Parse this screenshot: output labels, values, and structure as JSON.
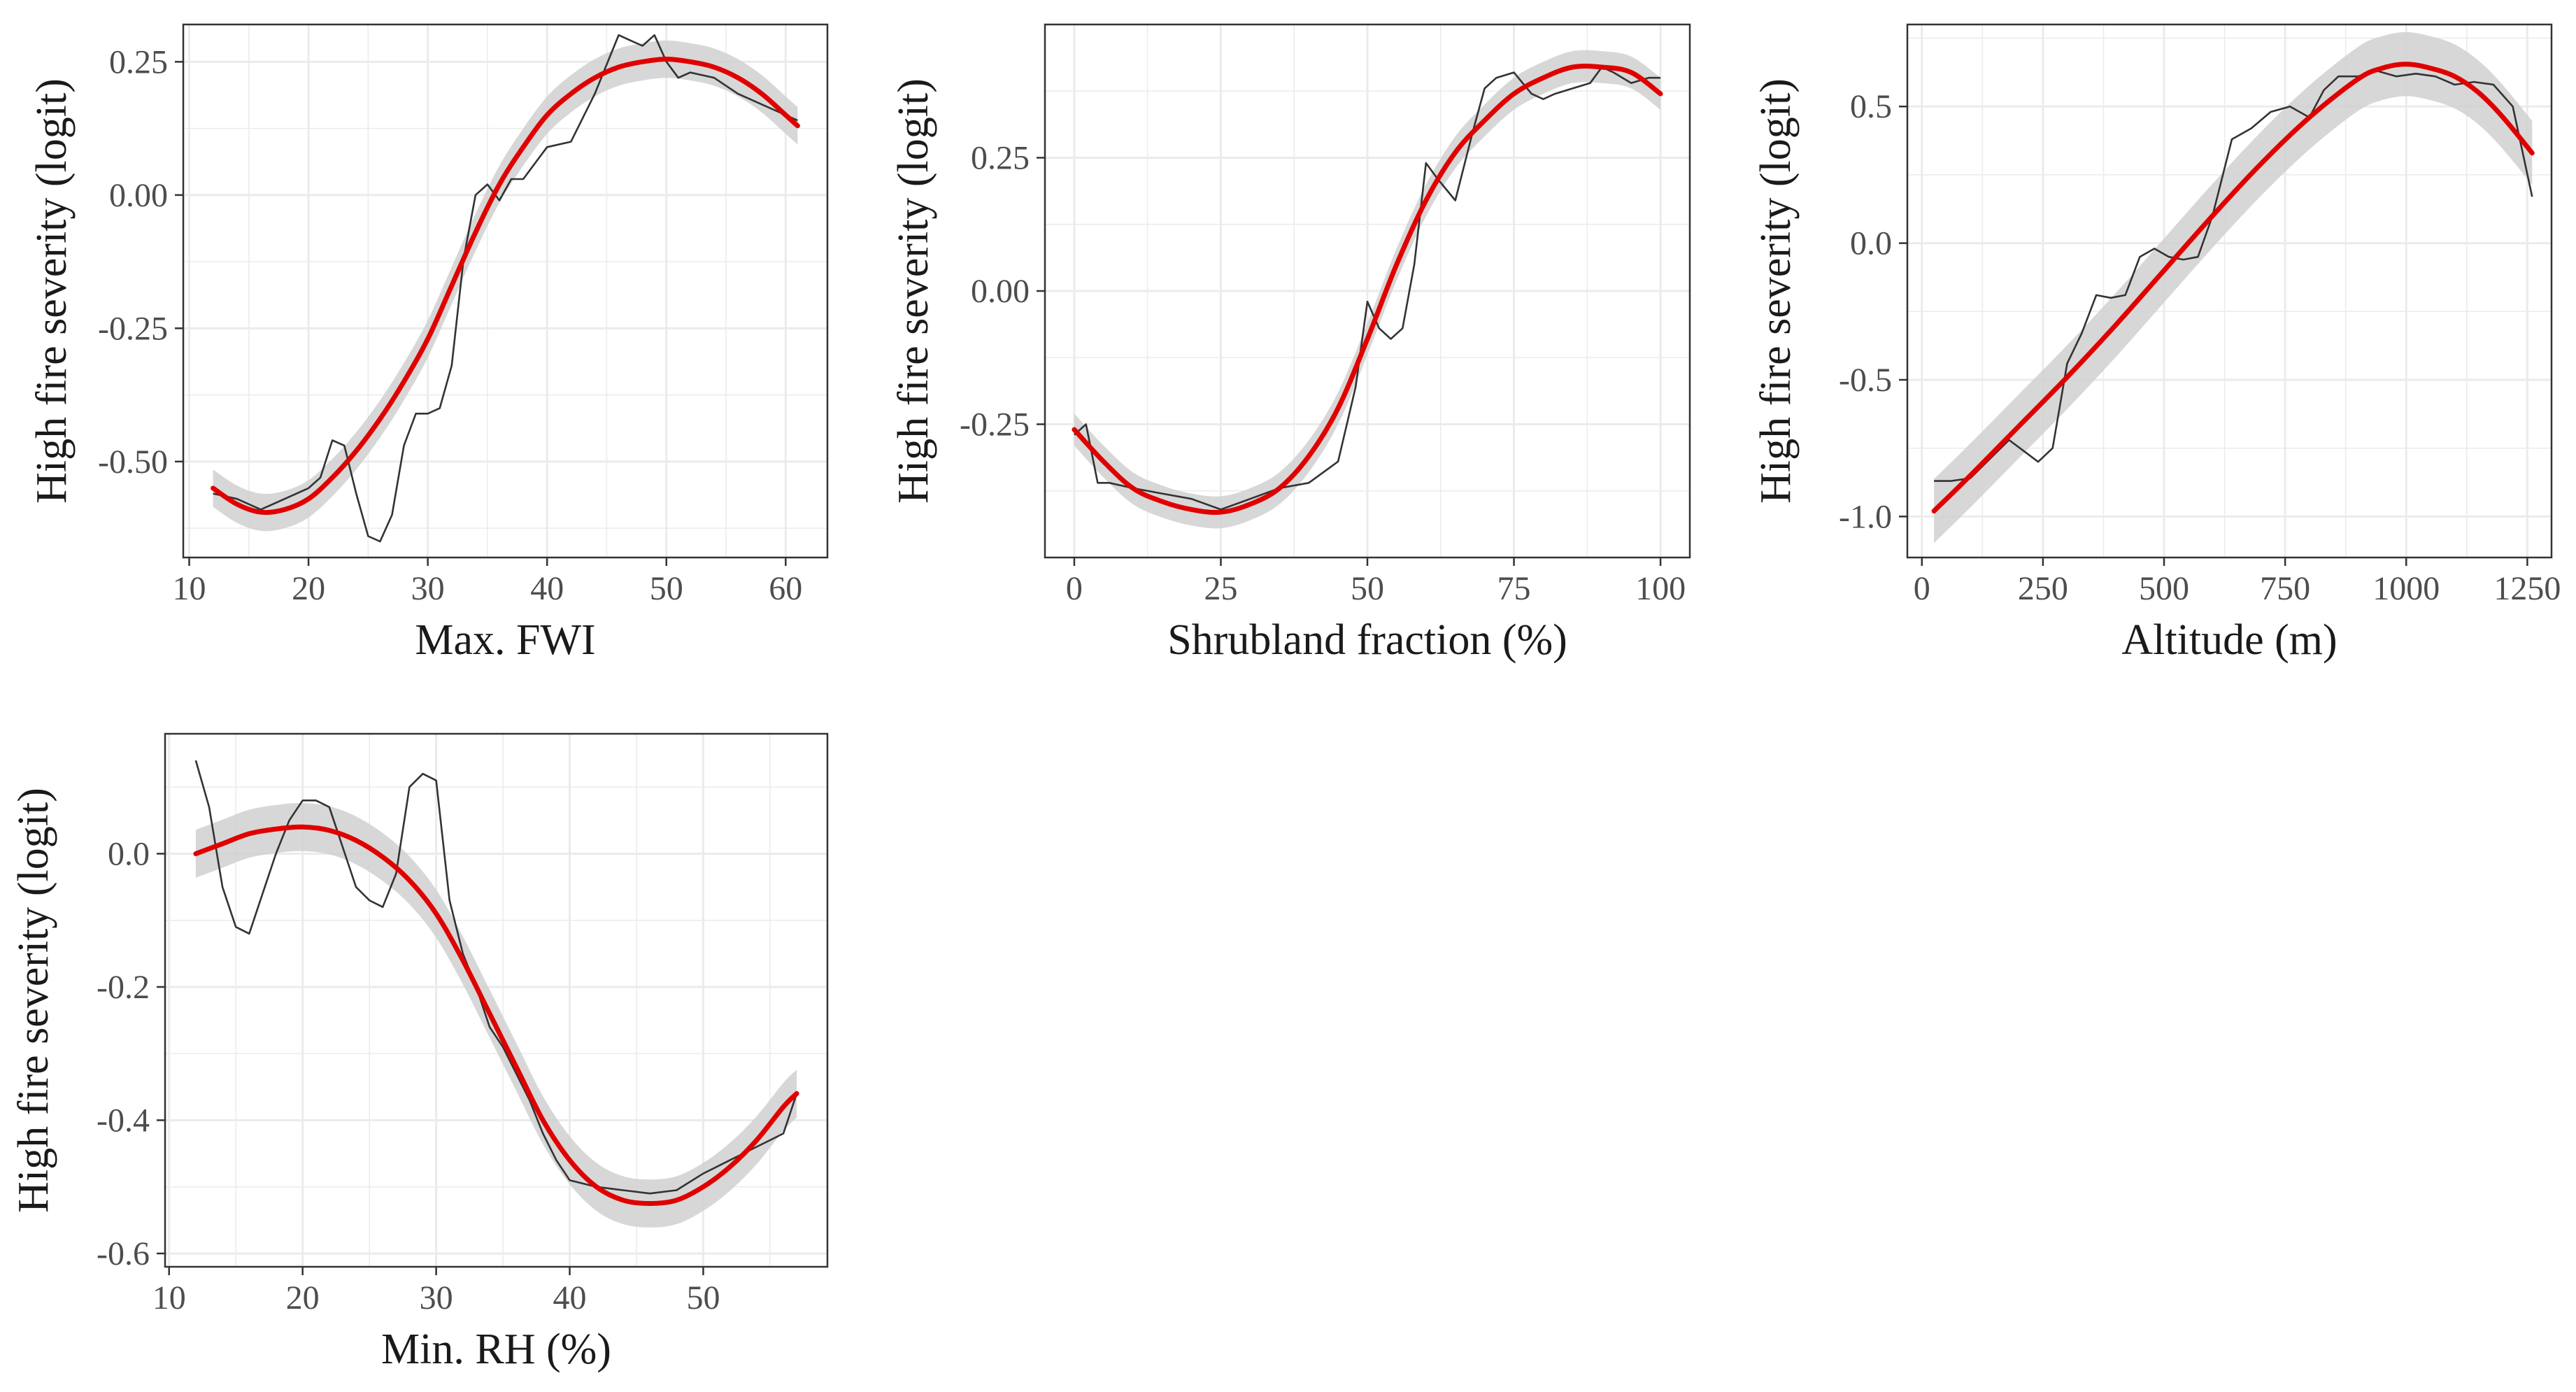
{
  "colors": {
    "smooth_line": "#e00000",
    "ci_band": "#d0d0d0",
    "raw_line": "#333333",
    "grid": "#ebebeb",
    "frame": "#333333",
    "text": "#1a1a1a"
  },
  "chart_data": [
    {
      "type": "line",
      "xlabel": "Max. FWI",
      "ylabel": "High fire severity (logit)",
      "xlim": [
        9.5,
        63.5
      ],
      "ylim": [
        -0.68,
        0.32
      ],
      "xticks": [
        10,
        20,
        30,
        40,
        50,
        60
      ],
      "yticks": [
        -0.5,
        -0.25,
        0.0,
        0.25
      ],
      "xtick_labels": [
        "10",
        "20",
        "30",
        "40",
        "50",
        "60"
      ],
      "ytick_labels": [
        "-0.50",
        "-0.25",
        "0.00",
        "0.25"
      ],
      "series": [
        {
          "name": "raw",
          "x": [
            12,
            14,
            16,
            18,
            20,
            21,
            22,
            23,
            24,
            25,
            26,
            27,
            28,
            29,
            30,
            31,
            32,
            33,
            34,
            35,
            36,
            37,
            38,
            39,
            40,
            42,
            44,
            46,
            47,
            48,
            49,
            50,
            51,
            52,
            54,
            56,
            58,
            60,
            61
          ],
          "y": [
            -0.56,
            -0.57,
            -0.59,
            -0.57,
            -0.55,
            -0.53,
            -0.46,
            -0.47,
            -0.56,
            -0.64,
            -0.65,
            -0.6,
            -0.47,
            -0.41,
            -0.41,
            -0.4,
            -0.32,
            -0.12,
            0.0,
            0.02,
            -0.01,
            0.03,
            0.03,
            0.06,
            0.09,
            0.1,
            0.19,
            0.3,
            0.29,
            0.28,
            0.3,
            0.25,
            0.22,
            0.23,
            0.22,
            0.19,
            0.17,
            0.15,
            0.14
          ]
        },
        {
          "name": "smooth",
          "x": [
            12,
            14,
            16,
            18,
            20,
            22,
            24,
            26,
            28,
            30,
            32,
            34,
            36,
            38,
            40,
            42,
            44,
            46,
            48,
            50,
            52,
            54,
            56,
            58,
            60,
            61
          ],
          "y": [
            -0.55,
            -0.58,
            -0.595,
            -0.59,
            -0.57,
            -0.53,
            -0.48,
            -0.42,
            -0.35,
            -0.27,
            -0.17,
            -0.07,
            0.02,
            0.09,
            0.15,
            0.19,
            0.22,
            0.24,
            0.25,
            0.255,
            0.25,
            0.24,
            0.22,
            0.19,
            0.15,
            0.13
          ]
        }
      ]
    },
    {
      "type": "line",
      "xlabel": "Shrubland fraction (%)",
      "ylabel": "High fire severity (logit)",
      "xlim": [
        -5,
        105
      ],
      "ylim": [
        -0.5,
        0.5
      ],
      "xticks": [
        0,
        25,
        50,
        75,
        100
      ],
      "yticks": [
        -0.25,
        0.0,
        0.25
      ],
      "xtick_labels": [
        "0",
        "25",
        "50",
        "75",
        "100"
      ],
      "ytick_labels": [
        "-0.25",
        "0.00",
        "0.25"
      ],
      "series": [
        {
          "name": "raw",
          "x": [
            0,
            2,
            4,
            6,
            10,
            15,
            20,
            25,
            30,
            35,
            40,
            45,
            48,
            50,
            52,
            54,
            56,
            58,
            60,
            62,
            65,
            68,
            70,
            72,
            75,
            78,
            80,
            82,
            85,
            88,
            90,
            92,
            95,
            98,
            100
          ],
          "y": [
            -0.27,
            -0.25,
            -0.36,
            -0.36,
            -0.37,
            -0.38,
            -0.39,
            -0.41,
            -0.39,
            -0.37,
            -0.36,
            -0.32,
            -0.18,
            -0.02,
            -0.07,
            -0.09,
            -0.07,
            0.05,
            0.24,
            0.21,
            0.17,
            0.3,
            0.38,
            0.4,
            0.41,
            0.37,
            0.36,
            0.37,
            0.38,
            0.39,
            0.42,
            0.41,
            0.39,
            0.4,
            0.4
          ]
        },
        {
          "name": "smooth",
          "x": [
            0,
            5,
            10,
            15,
            20,
            25,
            30,
            35,
            40,
            45,
            50,
            55,
            60,
            65,
            70,
            75,
            80,
            85,
            90,
            95,
            100
          ],
          "y": [
            -0.26,
            -0.32,
            -0.37,
            -0.395,
            -0.41,
            -0.415,
            -0.4,
            -0.37,
            -0.31,
            -0.22,
            -0.09,
            0.05,
            0.17,
            0.26,
            0.32,
            0.37,
            0.4,
            0.42,
            0.42,
            0.41,
            0.37
          ]
        }
      ]
    },
    {
      "type": "line",
      "xlabel": "Altitude (m)",
      "ylabel": "High fire severity (logit)",
      "xlim": [
        -30,
        1300
      ],
      "ylim": [
        -1.15,
        0.8
      ],
      "xticks": [
        0,
        250,
        500,
        750,
        1000,
        1250
      ],
      "yticks": [
        -1.0,
        -0.5,
        0.0,
        0.5
      ],
      "xtick_labels": [
        "0",
        "250",
        "500",
        "750",
        "1000",
        "1250"
      ],
      "ytick_labels": [
        "-1.0",
        "-0.5",
        "0.0",
        "0.5"
      ],
      "series": [
        {
          "name": "raw",
          "x": [
            25,
            60,
            100,
            140,
            180,
            210,
            240,
            270,
            300,
            330,
            360,
            390,
            420,
            450,
            480,
            510,
            540,
            570,
            600,
            640,
            680,
            720,
            760,
            800,
            830,
            860,
            900,
            940,
            980,
            1020,
            1060,
            1100,
            1140,
            1180,
            1220,
            1260
          ],
          "y": [
            -0.87,
            -0.87,
            -0.86,
            -0.79,
            -0.72,
            -0.76,
            -0.8,
            -0.75,
            -0.44,
            -0.33,
            -0.19,
            -0.2,
            -0.19,
            -0.05,
            -0.02,
            -0.05,
            -0.06,
            -0.05,
            0.1,
            0.38,
            0.42,
            0.48,
            0.5,
            0.46,
            0.56,
            0.61,
            0.61,
            0.63,
            0.61,
            0.62,
            0.61,
            0.58,
            0.59,
            0.58,
            0.5,
            0.17
          ]
        },
        {
          "name": "smooth",
          "x": [
            25,
            100,
            200,
            300,
            400,
            500,
            600,
            700,
            800,
            900,
            950,
            1000,
            1050,
            1100,
            1150,
            1200,
            1260
          ],
          "y": [
            -0.98,
            -0.85,
            -0.67,
            -0.49,
            -0.3,
            -0.1,
            0.1,
            0.29,
            0.46,
            0.6,
            0.64,
            0.655,
            0.64,
            0.61,
            0.55,
            0.46,
            0.33
          ]
        }
      ]
    },
    {
      "type": "line",
      "xlabel": "Min. RH (%)",
      "ylabel": "High fire severity (logit)",
      "xlim": [
        9.7,
        59.3
      ],
      "ylim": [
        -0.62,
        0.18
      ],
      "xticks": [
        10,
        20,
        30,
        40,
        50
      ],
      "yticks": [
        -0.6,
        -0.4,
        -0.2,
        0.0
      ],
      "xtick_labels": [
        "10",
        "20",
        "30",
        "40",
        "50"
      ],
      "ytick_labels": [
        "-0.6",
        "-0.4",
        "-0.2",
        "0.0"
      ],
      "series": [
        {
          "name": "raw",
          "x": [
            12,
            13,
            14,
            15,
            16,
            17,
            18,
            19,
            20,
            21,
            22,
            23,
            24,
            25,
            26,
            27,
            28,
            29,
            30,
            31,
            32,
            33,
            34,
            35,
            36,
            37,
            38,
            39,
            40,
            42,
            44,
            46,
            48,
            50,
            52,
            54,
            56,
            57
          ],
          "y": [
            0.14,
            0.07,
            -0.05,
            -0.11,
            -0.12,
            -0.06,
            0.0,
            0.05,
            0.08,
            0.08,
            0.07,
            0.01,
            -0.05,
            -0.07,
            -0.08,
            -0.03,
            0.1,
            0.12,
            0.11,
            -0.07,
            -0.15,
            -0.2,
            -0.26,
            -0.29,
            -0.33,
            -0.37,
            -0.42,
            -0.46,
            -0.49,
            -0.5,
            -0.505,
            -0.51,
            -0.505,
            -0.48,
            -0.46,
            -0.44,
            -0.42,
            -0.36
          ]
        },
        {
          "name": "smooth",
          "x": [
            12,
            14,
            16,
            18,
            20,
            22,
            24,
            26,
            28,
            30,
            32,
            34,
            36,
            38,
            40,
            42,
            44,
            46,
            48,
            50,
            52,
            54,
            56,
            57
          ],
          "y": [
            0.0,
            0.015,
            0.03,
            0.037,
            0.04,
            0.035,
            0.02,
            -0.005,
            -0.04,
            -0.09,
            -0.16,
            -0.24,
            -0.32,
            -0.4,
            -0.46,
            -0.5,
            -0.52,
            -0.525,
            -0.52,
            -0.5,
            -0.47,
            -0.43,
            -0.38,
            -0.36
          ]
        }
      ]
    }
  ]
}
